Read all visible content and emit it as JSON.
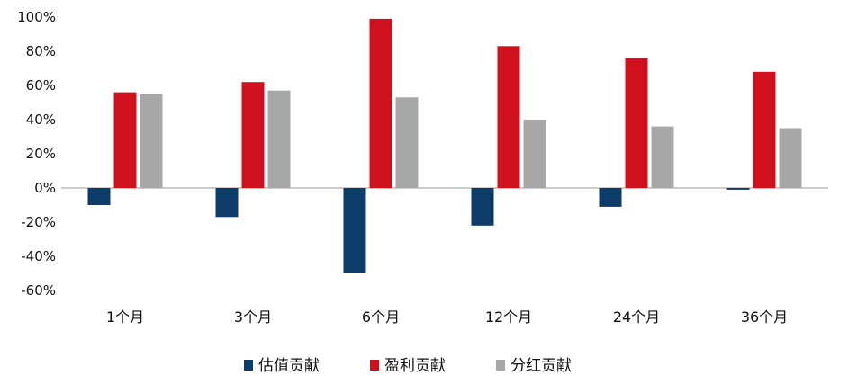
{
  "chart_data": {
    "type": "bar",
    "categories": [
      "1个月",
      "3个月",
      "6个月",
      "12个月",
      "24个月",
      "36个月"
    ],
    "series": [
      {
        "name": "估值贡献",
        "color": "#0e3c6a",
        "values": [
          -10,
          -17,
          -50,
          -22,
          -11,
          -1
        ]
      },
      {
        "name": "盈利贡献",
        "color": "#d0101c",
        "values": [
          56,
          62,
          99,
          83,
          76,
          68
        ]
      },
      {
        "name": "分红贡献",
        "color": "#a7a7a7",
        "values": [
          55,
          57,
          53,
          40,
          36,
          35
        ]
      }
    ],
    "yticks": [
      "100%",
      "80%",
      "60%",
      "40%",
      "20%",
      "0%",
      "-20%",
      "-40%",
      "-60%"
    ],
    "ylim": [
      -60,
      100
    ],
    "legend_position": "bottom",
    "grid": false
  }
}
